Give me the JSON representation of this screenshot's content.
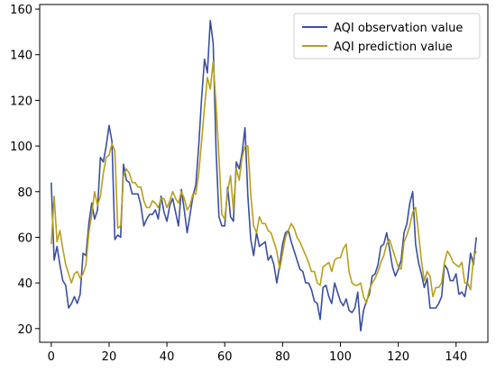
{
  "chart_data": {
    "type": "line",
    "x": [
      0,
      1,
      2,
      3,
      4,
      5,
      6,
      7,
      8,
      9,
      10,
      11,
      12,
      13,
      14,
      15,
      16,
      17,
      18,
      19,
      20,
      21,
      22,
      23,
      24,
      25,
      26,
      27,
      28,
      29,
      30,
      31,
      32,
      33,
      34,
      35,
      36,
      37,
      38,
      39,
      40,
      41,
      42,
      43,
      44,
      45,
      46,
      47,
      48,
      49,
      50,
      51,
      52,
      53,
      54,
      55,
      56,
      57,
      58,
      59,
      60,
      61,
      62,
      63,
      64,
      65,
      66,
      67,
      68,
      69,
      70,
      71,
      72,
      73,
      74,
      75,
      76,
      77,
      78,
      79,
      80,
      81,
      82,
      83,
      84,
      85,
      86,
      87,
      88,
      89,
      90,
      91,
      92,
      93,
      94,
      95,
      96,
      97,
      98,
      99,
      100,
      101,
      102,
      103,
      104,
      105,
      106,
      107,
      108,
      109,
      110,
      111,
      112,
      113,
      114,
      115,
      116,
      117,
      118,
      119,
      120,
      121,
      122,
      123,
      124,
      125,
      126,
      127,
      128,
      129,
      130,
      131,
      132,
      133,
      134,
      135,
      136,
      137,
      138,
      139,
      140,
      141,
      142,
      143,
      144,
      145,
      146,
      147
    ],
    "series": [
      {
        "name": "AQI observation value",
        "color": "#3b4fa0",
        "values": [
          84,
          50,
          56,
          48,
          41,
          39,
          29,
          31,
          34,
          31,
          35,
          53,
          52,
          66,
          75,
          68,
          72,
          95,
          93,
          100,
          109,
          102,
          59,
          61,
          60,
          92,
          85,
          84,
          79,
          79,
          79,
          74,
          65,
          68,
          70,
          70,
          72,
          68,
          78,
          71,
          67,
          74,
          77,
          71,
          65,
          81,
          72,
          62,
          70,
          78,
          83,
          100,
          121,
          138,
          132,
          155,
          145,
          98,
          69,
          65,
          65,
          82,
          69,
          67,
          93,
          90,
          97,
          108,
          78,
          59,
          52,
          62,
          56,
          57,
          58,
          50,
          52,
          48,
          40,
          48,
          57,
          62,
          63,
          58,
          54,
          50,
          46,
          45,
          40,
          40,
          37,
          32,
          31,
          24,
          38,
          39,
          34,
          31,
          40,
          36,
          32,
          30,
          33,
          28,
          27,
          29,
          36,
          19,
          28,
          32,
          35,
          43,
          44,
          48,
          56,
          57,
          62,
          55,
          47,
          43,
          46,
          50,
          62,
          66,
          75,
          80,
          57,
          49,
          44,
          38,
          42,
          29,
          29,
          29,
          31,
          34,
          48,
          46,
          41,
          41,
          44,
          35,
          36,
          34,
          41,
          53,
          48,
          60
        ]
      },
      {
        "name": "AQI prediction value",
        "color": "#b8a01a",
        "values": [
          57,
          78,
          58,
          63,
          55,
          48,
          44,
          40,
          44,
          45,
          42,
          44,
          48,
          62,
          70,
          80,
          74,
          78,
          88,
          95,
          96,
          101,
          98,
          64,
          65,
          87,
          90,
          88,
          84,
          84,
          82,
          82,
          76,
          73,
          73,
          76,
          75,
          73,
          77,
          77,
          73,
          76,
          80,
          77,
          75,
          80,
          77,
          72,
          74,
          79,
          79,
          88,
          102,
          117,
          130,
          125,
          137,
          118,
          95,
          70,
          68,
          80,
          87,
          72,
          90,
          85,
          95,
          100,
          100,
          79,
          65,
          62,
          69,
          66,
          66,
          63,
          62,
          58,
          54,
          46,
          53,
          60,
          63,
          66,
          64,
          60,
          58,
          55,
          52,
          49,
          45,
          45,
          40,
          39,
          47,
          48,
          49,
          45,
          50,
          51,
          51,
          55,
          57,
          45,
          40,
          39,
          39,
          40,
          34,
          31,
          37,
          40,
          42,
          45,
          49,
          52,
          57,
          59,
          55,
          51,
          47,
          46,
          58,
          61,
          65,
          71,
          73,
          62,
          50,
          41,
          45,
          43,
          34,
          38,
          38,
          40,
          49,
          54,
          52,
          49,
          48,
          47,
          49,
          40,
          40,
          37,
          51,
          54
        ]
      }
    ],
    "xlim": [
      -4,
      151
    ],
    "ylim": [
      14,
      162
    ],
    "xticks": [
      0,
      20,
      40,
      60,
      80,
      100,
      120,
      140
    ],
    "yticks": [
      20,
      40,
      60,
      80,
      100,
      120,
      140,
      160
    ],
    "title": "",
    "xlabel": "",
    "ylabel": "",
    "grid": false,
    "legend_position": "upper-right"
  }
}
